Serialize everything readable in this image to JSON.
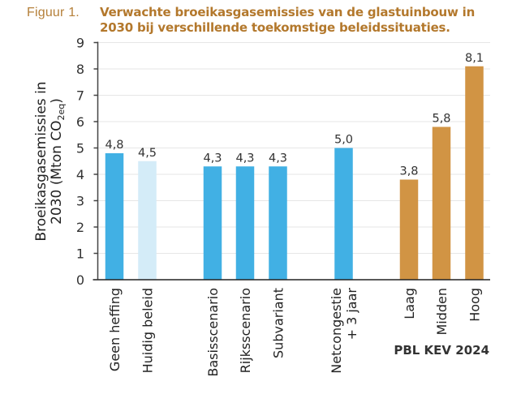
{
  "figure": {
    "label": "Figuur 1.",
    "title": "Verwachte broeikasgasemissies van de glastuinbouw in 2030 bij verschillende toekomstige beleidssituaties."
  },
  "colors": {
    "title": "#b3782c",
    "figure_label": "#b5803a",
    "blue": "#41b0e4",
    "light_blue": "#d4ecf8",
    "orange": "#d19444",
    "axis": "#444444",
    "grid": "#e6e6e6"
  },
  "chart_data": {
    "type": "bar",
    "title": "Verwachte broeikasgasemissies van de glastuinbouw in 2030 bij verschillende toekomstige beleidssituaties.",
    "xlabel": "",
    "ylabel_lines": [
      "Broeikasgasemissies in",
      "2030 (Mton CO",
      "2eq",
      ")"
    ],
    "ylabel": "Broeikasgasemissies in 2030 (Mton CO2eq)",
    "ylim": [
      0,
      9
    ],
    "yticks": [
      0,
      1,
      2,
      3,
      4,
      5,
      6,
      7,
      8,
      9
    ],
    "grid": true,
    "categories": [
      {
        "label": [
          "Geen heffing"
        ],
        "value": 4.8,
        "value_label": "4,8",
        "color": "blue",
        "group": 0
      },
      {
        "label": [
          "Huidig beleid"
        ],
        "value": 4.5,
        "value_label": "4,5",
        "color": "light_blue",
        "group": 0
      },
      {
        "label": [
          "Basisscenario"
        ],
        "value": 4.3,
        "value_label": "4,3",
        "color": "blue",
        "group": 1
      },
      {
        "label": [
          "Rijksscenario"
        ],
        "value": 4.3,
        "value_label": "4,3",
        "color": "blue",
        "group": 1
      },
      {
        "label": [
          "Subvariant"
        ],
        "value": 4.3,
        "value_label": "4,3",
        "color": "blue",
        "group": 1
      },
      {
        "label": [
          "Netcongestie",
          "+ 3 jaar"
        ],
        "value": 5.0,
        "value_label": "5,0",
        "color": "blue",
        "group": 2
      },
      {
        "label": [
          "Laag"
        ],
        "value": 3.8,
        "value_label": "3,8",
        "color": "orange",
        "group": 3
      },
      {
        "label": [
          "Midden"
        ],
        "value": 5.8,
        "value_label": "5,8",
        "color": "orange",
        "group": 3
      },
      {
        "label": [
          "Hoog"
        ],
        "value": 8.1,
        "value_label": "8,1",
        "color": "orange",
        "group": 3
      }
    ],
    "annotations": [
      {
        "text": "PBL KEV 2024",
        "group": 3
      }
    ]
  }
}
